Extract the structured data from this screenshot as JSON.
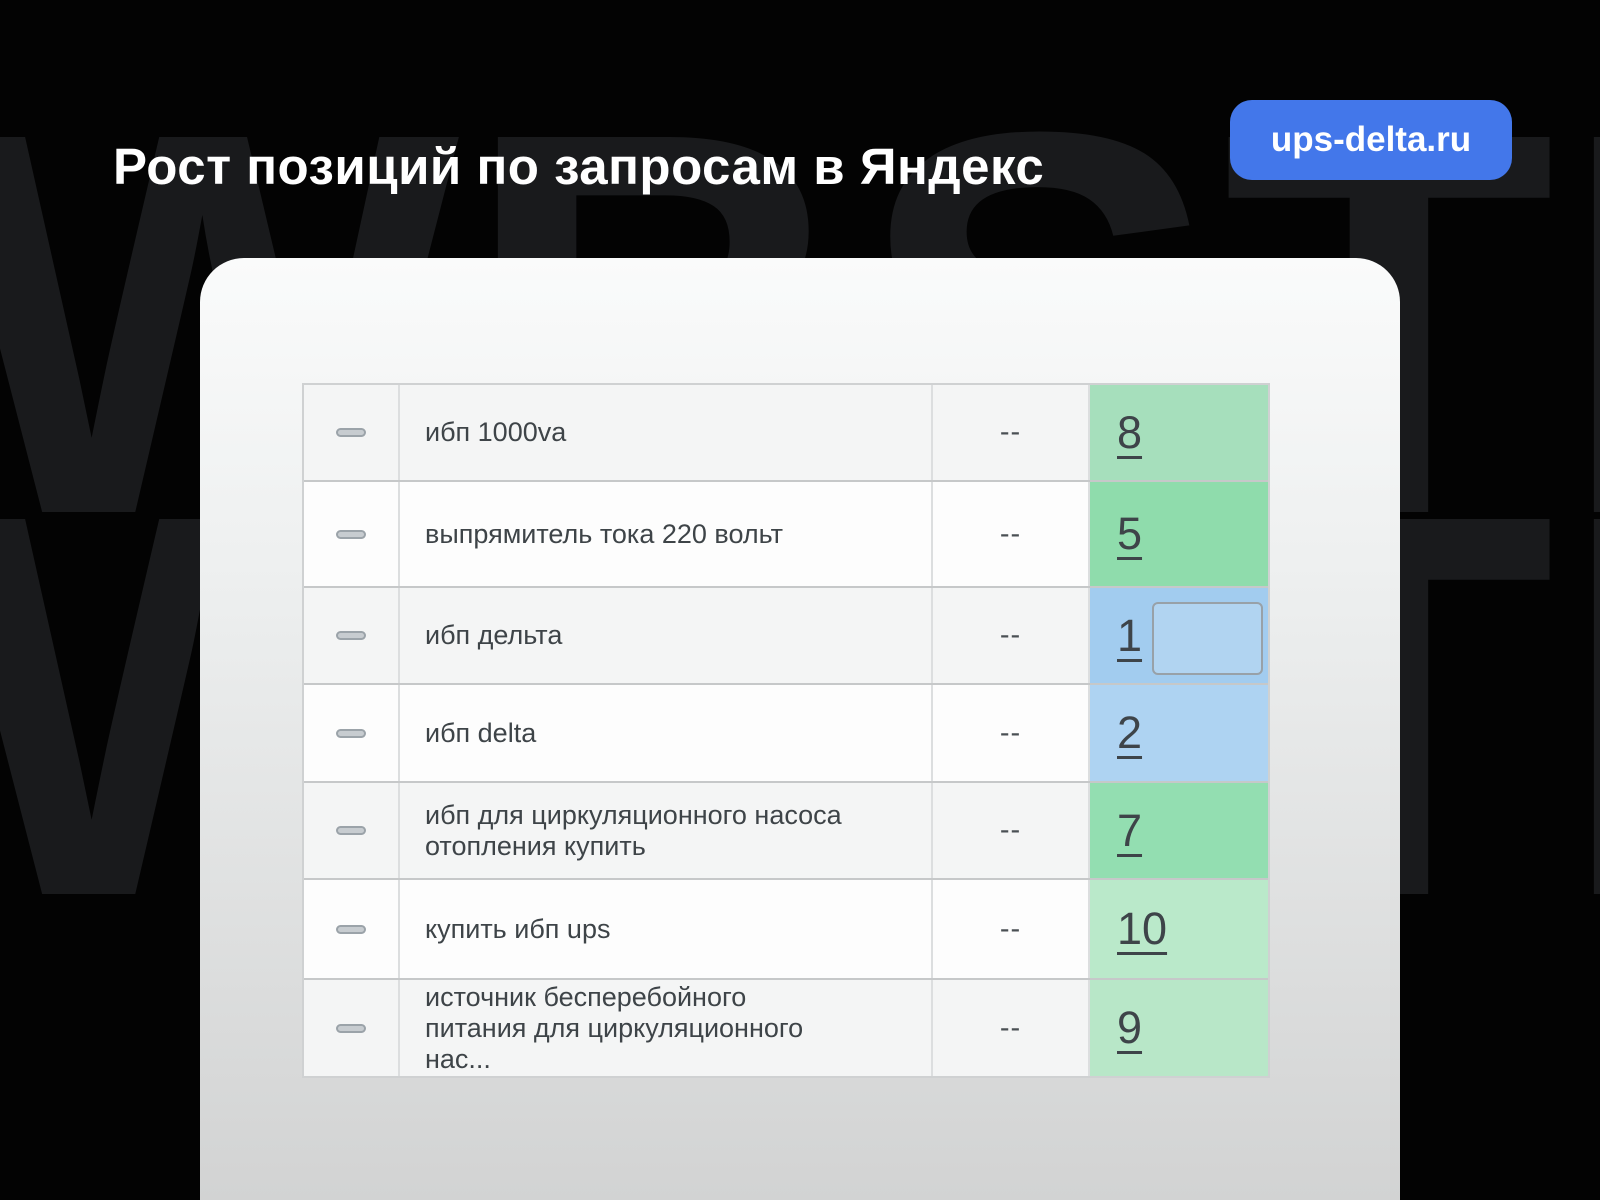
{
  "header": {
    "title": "Рост позиций по запросам в Яндекс",
    "badge_label": "ups-delta.ru"
  },
  "watermark": {
    "text": "WBSTR"
  },
  "positions_table": {
    "rows": [
      {
        "query": "ибп 1000va",
        "old_position": "--",
        "new_position": "8",
        "cell_color": "#a6dfbc"
      },
      {
        "query": "выпрямитель тока 220 вольт",
        "old_position": "--",
        "new_position": "5",
        "cell_color": "#8fdcac"
      },
      {
        "query": "ибп дельта",
        "old_position": "--",
        "new_position": "1",
        "cell_color": "#a2ccef"
      },
      {
        "query": "ибп delta",
        "old_position": "--",
        "new_position": "2",
        "cell_color": "#aed3f2"
      },
      {
        "query": "ибп для циркуляционного насоса\nотопления купить",
        "old_position": "--",
        "new_position": "7",
        "cell_color": "#93deb1"
      },
      {
        "query": "купить ибп ups",
        "old_position": "--",
        "new_position": "10",
        "cell_color": "#bae9ca"
      },
      {
        "query": "источник бесперебойного\nпитания для циркуляционного\nнас...",
        "old_position": "--",
        "new_position": "9",
        "cell_color": "#b8e7c8"
      }
    ]
  },
  "colors": {
    "background": "#030303",
    "watermark": "#191a1c",
    "badge_blue": "#4377ea",
    "title_text": "#ffffff",
    "growth_green": "#8fdcac",
    "top_blue": "#a2ccef"
  }
}
